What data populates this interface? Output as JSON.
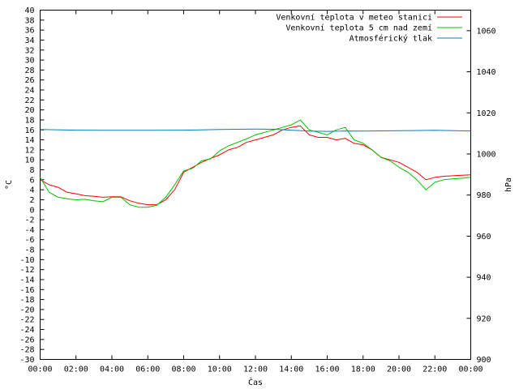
{
  "chart_data": {
    "type": "line",
    "title": "",
    "xlabel": "Čas",
    "ylabel": "°C",
    "y2label": "hPa",
    "xlim": [
      0,
      24
    ],
    "ylim": [
      -30,
      40
    ],
    "y2lim": [
      900,
      1070
    ],
    "grid": false,
    "legend": "top-right",
    "x_ticks": [
      "00:00",
      "02:00",
      "04:00",
      "06:00",
      "08:00",
      "10:00",
      "12:00",
      "14:00",
      "16:00",
      "18:00",
      "20:00",
      "22:00",
      "00:00"
    ],
    "y_ticks": [
      40,
      38,
      36,
      34,
      32,
      30,
      28,
      26,
      24,
      22,
      20,
      18,
      16,
      14,
      12,
      10,
      8,
      6,
      4,
      2,
      0,
      -2,
      -4,
      -6,
      -8,
      -10,
      -12,
      -14,
      -16,
      -18,
      -20,
      -22,
      -24,
      -26,
      -28,
      -30
    ],
    "y2_ticks": [
      1060,
      1040,
      1020,
      1000,
      980,
      960,
      940,
      920,
      900
    ],
    "series": [
      {
        "name": "Venkovní teplota v meteo stanici",
        "color": "#ff0000",
        "axis": "y",
        "x": [
          0,
          0.5,
          1,
          1.5,
          2,
          2.5,
          3,
          3.5,
          4,
          4.5,
          5,
          5.5,
          6,
          6.5,
          7,
          7.5,
          8,
          8.5,
          9,
          9.5,
          10,
          10.5,
          11,
          11.5,
          12,
          12.5,
          13,
          13.5,
          14,
          14.5,
          15,
          15.5,
          16,
          16.5,
          17,
          17.5,
          18,
          18.5,
          19,
          19.5,
          20,
          20.5,
          21,
          21.5,
          22,
          22.5,
          23,
          23.5,
          24
        ],
        "values": [
          6.0,
          5.0,
          4.5,
          3.5,
          3.2,
          2.8,
          2.7,
          2.5,
          2.6,
          2.6,
          1.8,
          1.3,
          1.0,
          1.0,
          2.0,
          4.0,
          7.5,
          8.5,
          9.5,
          10.3,
          11.0,
          12.0,
          12.5,
          13.5,
          14.0,
          14.5,
          15.0,
          16.0,
          16.5,
          16.8,
          15.0,
          14.5,
          14.5,
          14.0,
          14.3,
          13.3,
          13.0,
          12.0,
          10.5,
          10.0,
          9.5,
          8.5,
          7.5,
          6.0,
          6.5,
          6.7,
          6.8,
          6.9,
          7.0
        ]
      },
      {
        "name": "Venkovní teplota 5 cm nad zemí",
        "color": "#00c000",
        "axis": "y",
        "x": [
          0,
          0.5,
          1,
          1.5,
          2,
          2.5,
          3,
          3.5,
          4,
          4.5,
          5,
          5.5,
          6,
          6.5,
          7,
          7.5,
          8,
          8.5,
          9,
          9.5,
          10,
          10.5,
          11,
          11.5,
          12,
          12.5,
          13,
          13.5,
          14,
          14.5,
          15,
          15.5,
          16,
          16.5,
          17,
          17.5,
          18,
          18.5,
          19,
          19.5,
          20,
          20.5,
          21,
          21.5,
          22,
          22.5,
          23,
          23.5,
          24
        ],
        "values": [
          6.5,
          3.5,
          2.5,
          2.2,
          2.0,
          2.1,
          1.8,
          1.6,
          2.5,
          2.5,
          1.0,
          0.5,
          0.5,
          0.9,
          2.5,
          5.0,
          7.8,
          8.3,
          9.8,
          10.2,
          11.8,
          12.8,
          13.5,
          14.2,
          15.0,
          15.5,
          16.0,
          16.5,
          17.0,
          18.0,
          16.0,
          15.5,
          15.0,
          16.0,
          16.5,
          14.0,
          13.3,
          12.0,
          10.5,
          9.8,
          8.5,
          7.5,
          6.0,
          4.0,
          5.5,
          6.0,
          6.2,
          6.3,
          6.5
        ]
      },
      {
        "name": "Atmosférický tlak",
        "color": "#0080c0",
        "axis": "y2",
        "x": [
          0,
          2,
          4,
          6,
          8,
          10,
          12,
          13,
          14,
          15,
          16,
          17,
          18,
          20,
          22,
          24
        ],
        "values": [
          1011.9,
          1011.6,
          1011.5,
          1011.5,
          1011.6,
          1011.9,
          1012.1,
          1012.0,
          1011.6,
          1011.1,
          1011.0,
          1011.2,
          1011.1,
          1011.3,
          1011.5,
          1011.2
        ]
      }
    ]
  }
}
